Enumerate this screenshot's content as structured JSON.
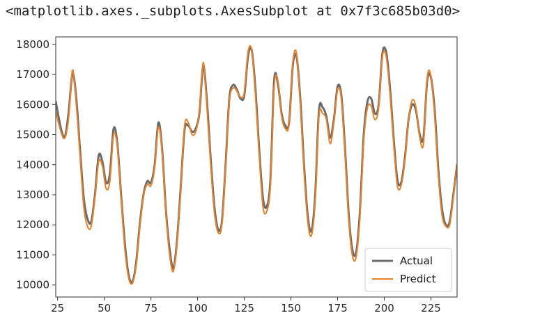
{
  "output_repr": "<matplotlib.axes._subplots.AxesSubplot at 0x7f3c685b03d0>",
  "chart_data": {
    "type": "line",
    "xlim": [
      24,
      239
    ],
    "ylim": [
      9600,
      18250
    ],
    "x_ticks": [
      25,
      50,
      75,
      100,
      125,
      150,
      175,
      200,
      225
    ],
    "y_ticks": [
      10000,
      11000,
      12000,
      13000,
      14000,
      15000,
      16000,
      17000,
      18000
    ],
    "grid": false,
    "legend_position": "lower right",
    "series": [
      {
        "name": "Actual",
        "color": "#6b6b6b",
        "points": [
          [
            24,
            16100
          ],
          [
            27,
            15150
          ],
          [
            29,
            14950
          ],
          [
            31,
            15800
          ],
          [
            33,
            17050
          ],
          [
            35,
            16200
          ],
          [
            37,
            14500
          ],
          [
            39,
            12900
          ],
          [
            41,
            12200
          ],
          [
            43,
            12100
          ],
          [
            45,
            13000
          ],
          [
            47,
            14300
          ],
          [
            49,
            14100
          ],
          [
            51,
            13400
          ],
          [
            53,
            13700
          ],
          [
            55,
            15200
          ],
          [
            57,
            14700
          ],
          [
            59,
            13000
          ],
          [
            61,
            11400
          ],
          [
            63,
            10350
          ],
          [
            65,
            10100
          ],
          [
            67,
            10700
          ],
          [
            69,
            12000
          ],
          [
            71,
            13000
          ],
          [
            73,
            13450
          ],
          [
            75,
            13400
          ],
          [
            77,
            14000
          ],
          [
            79,
            15400
          ],
          [
            81,
            14500
          ],
          [
            83,
            12500
          ],
          [
            85,
            11200
          ],
          [
            87,
            10550
          ],
          [
            89,
            11500
          ],
          [
            91,
            13300
          ],
          [
            93,
            15150
          ],
          [
            95,
            15300
          ],
          [
            97,
            15100
          ],
          [
            99,
            15200
          ],
          [
            101,
            15750
          ],
          [
            103,
            17300
          ],
          [
            105,
            16100
          ],
          [
            107,
            14200
          ],
          [
            109,
            12600
          ],
          [
            111,
            11850
          ],
          [
            113,
            12100
          ],
          [
            115,
            14000
          ],
          [
            117,
            16200
          ],
          [
            119,
            16650
          ],
          [
            121,
            16500
          ],
          [
            123,
            16200
          ],
          [
            125,
            16300
          ],
          [
            127,
            17600
          ],
          [
            129,
            17800
          ],
          [
            131,
            16500
          ],
          [
            133,
            14500
          ],
          [
            135,
            12900
          ],
          [
            137,
            12600
          ],
          [
            139,
            13500
          ],
          [
            141,
            16800
          ],
          [
            143,
            16700
          ],
          [
            145,
            15700
          ],
          [
            147,
            15300
          ],
          [
            149,
            15400
          ],
          [
            151,
            17300
          ],
          [
            153,
            17600
          ],
          [
            155,
            16200
          ],
          [
            157,
            14000
          ],
          [
            159,
            12300
          ],
          [
            161,
            11800
          ],
          [
            163,
            13000
          ],
          [
            165,
            15800
          ],
          [
            167,
            15900
          ],
          [
            169,
            15600
          ],
          [
            171,
            14900
          ],
          [
            173,
            15500
          ],
          [
            175,
            16600
          ],
          [
            177,
            16300
          ],
          [
            179,
            14500
          ],
          [
            181,
            12300
          ],
          [
            183,
            11150
          ],
          [
            185,
            11100
          ],
          [
            187,
            12500
          ],
          [
            189,
            15000
          ],
          [
            191,
            16100
          ],
          [
            193,
            16200
          ],
          [
            195,
            15700
          ],
          [
            197,
            16000
          ],
          [
            199,
            17700
          ],
          [
            201,
            17750
          ],
          [
            203,
            16600
          ],
          [
            205,
            14900
          ],
          [
            207,
            13500
          ],
          [
            209,
            13400
          ],
          [
            211,
            14200
          ],
          [
            213,
            15500
          ],
          [
            215,
            16000
          ],
          [
            217,
            15800
          ],
          [
            219,
            15000
          ],
          [
            221,
            14900
          ],
          [
            223,
            16800
          ],
          [
            225,
            16900
          ],
          [
            227,
            15800
          ],
          [
            229,
            13800
          ],
          [
            231,
            12500
          ],
          [
            233,
            12000
          ],
          [
            235,
            12100
          ],
          [
            237,
            13000
          ],
          [
            239,
            14000
          ]
        ]
      },
      {
        "name": "Predict",
        "color": "#e8822a",
        "points": [
          [
            24,
            15750
          ],
          [
            27,
            15050
          ],
          [
            29,
            14900
          ],
          [
            31,
            15600
          ],
          [
            33,
            17150
          ],
          [
            35,
            16000
          ],
          [
            37,
            14300
          ],
          [
            39,
            12600
          ],
          [
            41,
            11950
          ],
          [
            43,
            11950
          ],
          [
            45,
            12900
          ],
          [
            47,
            14100
          ],
          [
            49,
            13950
          ],
          [
            51,
            13200
          ],
          [
            53,
            13450
          ],
          [
            55,
            15000
          ],
          [
            57,
            14600
          ],
          [
            59,
            12900
          ],
          [
            61,
            11200
          ],
          [
            63,
            10250
          ],
          [
            65,
            10050
          ],
          [
            67,
            10600
          ],
          [
            69,
            11900
          ],
          [
            71,
            12950
          ],
          [
            73,
            13350
          ],
          [
            75,
            13300
          ],
          [
            77,
            13900
          ],
          [
            79,
            15250
          ],
          [
            81,
            14400
          ],
          [
            83,
            12400
          ],
          [
            85,
            11000
          ],
          [
            87,
            10450
          ],
          [
            89,
            11400
          ],
          [
            91,
            13200
          ],
          [
            93,
            15300
          ],
          [
            95,
            15400
          ],
          [
            97,
            15000
          ],
          [
            99,
            15100
          ],
          [
            101,
            15800
          ],
          [
            103,
            17400
          ],
          [
            105,
            15900
          ],
          [
            107,
            14000
          ],
          [
            109,
            12400
          ],
          [
            111,
            11750
          ],
          [
            113,
            12000
          ],
          [
            115,
            13900
          ],
          [
            117,
            16100
          ],
          [
            119,
            16550
          ],
          [
            121,
            16450
          ],
          [
            123,
            16250
          ],
          [
            125,
            16400
          ],
          [
            127,
            17750
          ],
          [
            129,
            17800
          ],
          [
            131,
            16300
          ],
          [
            133,
            14300
          ],
          [
            135,
            12600
          ],
          [
            137,
            12450
          ],
          [
            139,
            13300
          ],
          [
            141,
            16600
          ],
          [
            143,
            16800
          ],
          [
            145,
            15600
          ],
          [
            147,
            15200
          ],
          [
            149,
            15350
          ],
          [
            151,
            17400
          ],
          [
            153,
            17700
          ],
          [
            155,
            16000
          ],
          [
            157,
            13800
          ],
          [
            159,
            12100
          ],
          [
            161,
            11650
          ],
          [
            163,
            12800
          ],
          [
            165,
            15600
          ],
          [
            167,
            15700
          ],
          [
            169,
            15500
          ],
          [
            171,
            14700
          ],
          [
            173,
            15400
          ],
          [
            175,
            16500
          ],
          [
            177,
            16200
          ],
          [
            179,
            14300
          ],
          [
            181,
            12100
          ],
          [
            183,
            10950
          ],
          [
            185,
            10950
          ],
          [
            187,
            12300
          ],
          [
            189,
            14800
          ],
          [
            191,
            15900
          ],
          [
            193,
            15950
          ],
          [
            195,
            15500
          ],
          [
            197,
            15900
          ],
          [
            199,
            17600
          ],
          [
            201,
            17600
          ],
          [
            203,
            16400
          ],
          [
            205,
            14700
          ],
          [
            207,
            13300
          ],
          [
            209,
            13300
          ],
          [
            211,
            14100
          ],
          [
            213,
            15500
          ],
          [
            215,
            16150
          ],
          [
            217,
            15900
          ],
          [
            219,
            14900
          ],
          [
            221,
            14700
          ],
          [
            223,
            16900
          ],
          [
            225,
            16950
          ],
          [
            227,
            15600
          ],
          [
            229,
            13600
          ],
          [
            231,
            12300
          ],
          [
            233,
            11950
          ],
          [
            235,
            12000
          ],
          [
            237,
            12900
          ],
          [
            239,
            14000
          ]
        ]
      }
    ]
  }
}
